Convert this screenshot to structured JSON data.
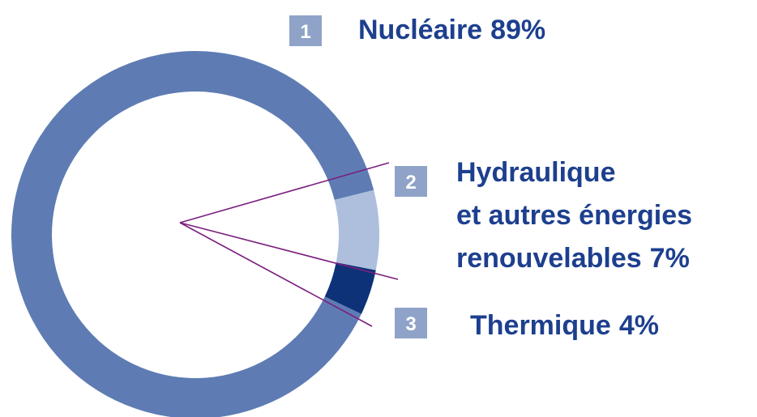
{
  "chart_data": {
    "type": "donut",
    "categories": [
      [
        "Nucléaire"
      ],
      [
        "Hydraulique",
        "et autres énergies",
        "renouvelables"
      ],
      [
        "Thermique"
      ]
    ],
    "values": [
      89,
      7,
      4
    ],
    "value_labels": [
      "89%",
      "7%",
      "4%"
    ],
    "numbers": [
      1,
      2,
      3
    ],
    "colors": [
      "#5e7cb3",
      "#adbfdd",
      "#0d3278"
    ]
  }
}
